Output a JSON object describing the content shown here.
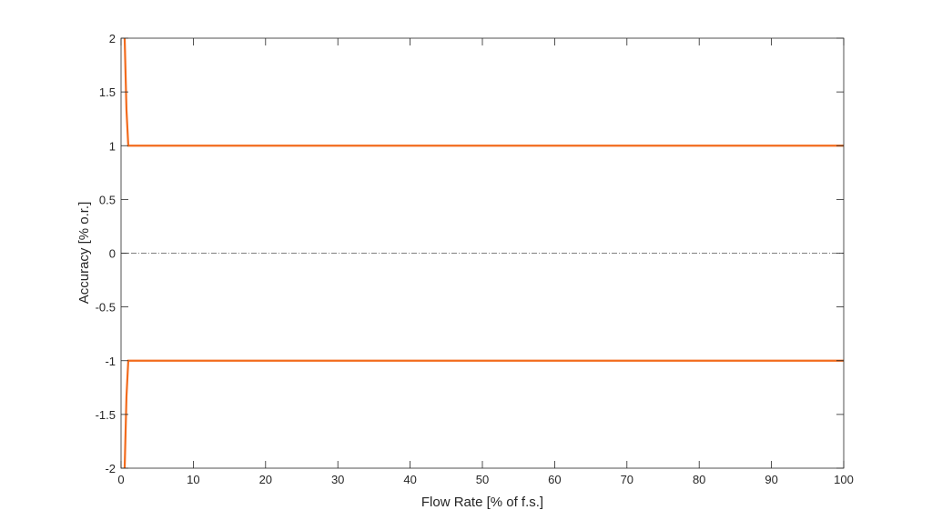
{
  "chart_data": {
    "type": "line",
    "title": "",
    "xlabel": "Flow Rate [% of f.s.]",
    "ylabel": "Accuracy [% o.r.]",
    "xlim": [
      0,
      100
    ],
    "ylim": [
      -2,
      2
    ],
    "xticks": [
      0,
      10,
      20,
      30,
      40,
      50,
      60,
      70,
      80,
      90,
      100
    ],
    "yticks": [
      -2,
      -1.5,
      -1,
      -0.5,
      0,
      0.5,
      1,
      1.5,
      2
    ],
    "ytick_labels": [
      "-2",
      "-1.5",
      "-1",
      "-0.5",
      "0",
      "0.5",
      "1",
      "1.5",
      "2"
    ],
    "grid": false,
    "series": [
      {
        "color": "#f26b1d",
        "x": [
          0.5,
          0.75,
          1,
          100
        ],
        "y": [
          2,
          1.333,
          1,
          1
        ]
      },
      {
        "color": "#f26b1d",
        "x": [
          0.5,
          0.75,
          1,
          100
        ],
        "y": [
          -2,
          -1.333,
          -1,
          -1
        ]
      }
    ],
    "reference_line": {
      "y": 0,
      "style": "dash-dot",
      "color": "#7f7f7f"
    }
  }
}
